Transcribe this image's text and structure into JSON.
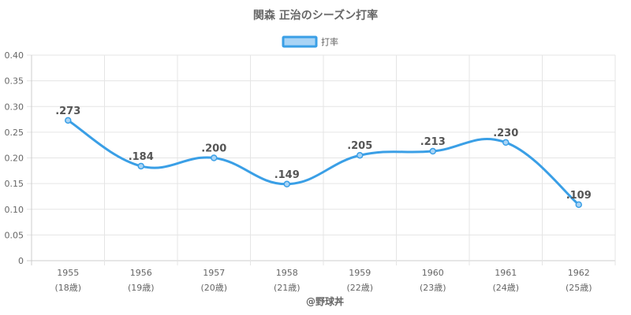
{
  "title": "関森 正治のシーズン打率",
  "legend": {
    "label": "打率"
  },
  "credit": "@野球丼",
  "colors": {
    "line": "#3a9fe6",
    "fill": "#a9d4f5",
    "grid": "#e5e5e5",
    "axis": "#cccccc"
  },
  "chart_data": {
    "type": "line",
    "title": "関森 正治のシーズン打率",
    "categories": [
      "1955",
      "1956",
      "1957",
      "1958",
      "1959",
      "1960",
      "1961",
      "1962"
    ],
    "category_sublabels": [
      "(18歳)",
      "(19歳)",
      "(20歳)",
      "(21歳)",
      "(22歳)",
      "(23歳)",
      "(24歳)",
      "(25歳)"
    ],
    "series": [
      {
        "name": "打率",
        "values": [
          0.273,
          0.184,
          0.2,
          0.149,
          0.205,
          0.213,
          0.23,
          0.109
        ]
      }
    ],
    "data_labels": [
      ".273",
      ".184",
      ".200",
      ".149",
      ".205",
      ".213",
      ".230",
      ".109"
    ],
    "yticks": [
      "0",
      "0.05",
      "0.10",
      "0.15",
      "0.20",
      "0.25",
      "0.30",
      "0.35",
      "0.40"
    ],
    "ylim": [
      0,
      0.4
    ],
    "grid": true,
    "legend_position": "top-center"
  }
}
